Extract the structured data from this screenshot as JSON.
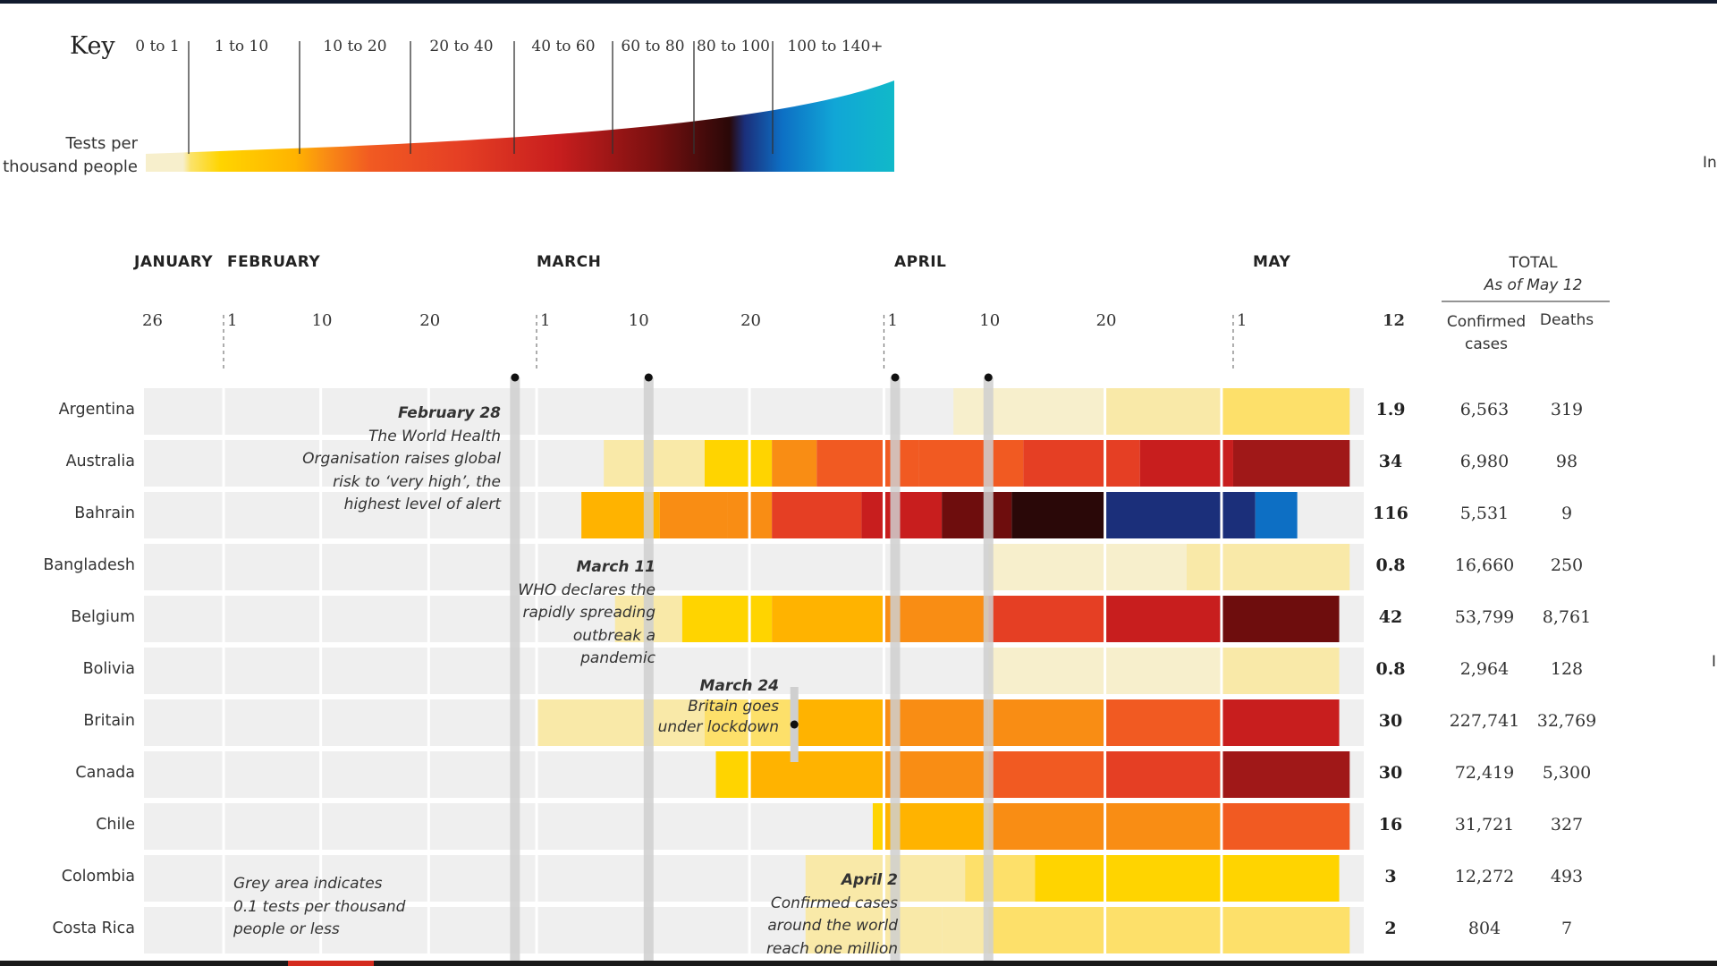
{
  "key": {
    "title": "Key",
    "label_line1": "Tests per",
    "label_line2": "thousand people",
    "ranges": [
      "0 to 1",
      "1 to 10",
      "10 to 20",
      "20 to 40",
      "40 to 60",
      "60 to 80",
      "80 to 100",
      "100 to 140+"
    ]
  },
  "months": [
    "JANUARY",
    "FEBRUARY",
    "MARCH",
    "APRIL",
    "MAY"
  ],
  "days": {
    "jan": [
      "26"
    ],
    "feb": [
      "1",
      "10",
      "20"
    ],
    "mar": [
      "1",
      "10",
      "20"
    ],
    "apr": [
      "1",
      "10",
      "20"
    ],
    "may": [
      "1"
    ],
    "last": "12"
  },
  "totals_header": {
    "title": "TOTAL",
    "subtitle": "As of May 12",
    "confirmed_line1": "Confirmed",
    "confirmed_line2": "cases",
    "deaths": "Deaths"
  },
  "annotations": {
    "feb28": {
      "date": "February 28",
      "lines": [
        "The World Health",
        "Organisation raises global",
        "risk to ‘very high’, the",
        "highest level of alert"
      ]
    },
    "mar11": {
      "date": "March 11",
      "lines": [
        "WHO declares the",
        "rapidly spreading",
        "outbreak a",
        "pandemic"
      ]
    },
    "mar24": {
      "date": "March 24",
      "lines": [
        "Britain goes",
        "under lockdown"
      ]
    },
    "apr2": {
      "date": "April 2",
      "lines": [
        "Confirmed cases",
        "around the world",
        "reach one million"
      ]
    },
    "grey": {
      "lines": [
        "Grey area indicates",
        "0.1 tests per thousand",
        "people or less"
      ]
    }
  },
  "edge_text": {
    "right_top": "In",
    "right_mid": "I"
  },
  "colors": {
    "grey_row": "#efefef",
    "event_line": "#cfcfcf",
    "scale": [
      "#f7efcc",
      "#fbe36a",
      "#ffd400",
      "#ffb300",
      "#f98d14",
      "#f15a22",
      "#e53f24",
      "#c81e1e",
      "#a01818",
      "#6e0d0d",
      "#2a0808",
      "#1b2f7a",
      "#0d6fc4",
      "#11a6d6",
      "#11b9c9"
    ]
  },
  "chart_data": {
    "type": "heatmap",
    "title": "",
    "xlabel": "",
    "ylabel": "",
    "x_range": [
      "2020-01-26",
      "2020-05-12"
    ],
    "legend": {
      "title": "Tests per thousand people",
      "bins": [
        "0 to 1",
        "1 to 10",
        "10 to 20",
        "20 to 40",
        "40 to 60",
        "60 to 80",
        "80 to 100",
        "100 to 140+"
      ],
      "position": "top-left"
    },
    "events": [
      {
        "date": "2020-02-28",
        "label": "February 28"
      },
      {
        "date": "2020-03-11",
        "label": "March 11"
      },
      {
        "date": "2020-04-02",
        "label": "April 2"
      },
      {
        "date": "2020-04-10",
        "label": ""
      }
    ],
    "columns": [
      "Tests per thousand (May 12)",
      "Confirmed cases",
      "Deaths"
    ],
    "rows": [
      {
        "country": "Argentina",
        "start": "2020-04-07",
        "end": "2020-05-12",
        "tests": "1.9",
        "cases": "6,563",
        "deaths": "319",
        "segments": [
          [
            "2020-04-07",
            "2020-04-20",
            0.15
          ],
          [
            "2020-04-20",
            "2020-04-30",
            0.6
          ],
          [
            "2020-04-30",
            "2020-05-12",
            1.9
          ]
        ]
      },
      {
        "country": "Australia",
        "start": "2020-03-07",
        "end": "2020-05-12",
        "tests": "34",
        "cases": "6,980",
        "deaths": "98",
        "segments": [
          [
            "2020-03-07",
            "2020-03-16",
            0.8
          ],
          [
            "2020-03-16",
            "2020-03-22",
            4
          ],
          [
            "2020-03-22",
            "2020-03-26",
            10
          ],
          [
            "2020-03-26",
            "2020-04-04",
            13
          ],
          [
            "2020-04-04",
            "2020-04-13",
            16
          ],
          [
            "2020-04-13",
            "2020-04-23",
            21
          ],
          [
            "2020-04-23",
            "2020-05-01",
            25
          ],
          [
            "2020-05-01",
            "2020-05-12",
            34
          ]
        ]
      },
      {
        "country": "Bahrain",
        "start": "2020-03-05",
        "end": "2020-05-07",
        "tests": "116",
        "cases": "5,531",
        "deaths": "9",
        "segments": [
          [
            "2020-03-05",
            "2020-03-12",
            6
          ],
          [
            "2020-03-12",
            "2020-03-18",
            9
          ],
          [
            "2020-03-18",
            "2020-03-22",
            11
          ],
          [
            "2020-03-22",
            "2020-03-30",
            18
          ],
          [
            "2020-03-30",
            "2020-04-06",
            27
          ],
          [
            "2020-04-06",
            "2020-04-12",
            40
          ],
          [
            "2020-04-12",
            "2020-04-20",
            52
          ],
          [
            "2020-04-20",
            "2020-04-30",
            68
          ],
          [
            "2020-04-30",
            "2020-05-03",
            86
          ],
          [
            "2020-05-03",
            "2020-05-07",
            108
          ]
        ]
      },
      {
        "country": "Bangladesh",
        "start": "2020-04-10",
        "end": "2020-05-12",
        "tests": "0.8",
        "cases": "16,660",
        "deaths": "250",
        "segments": [
          [
            "2020-04-10",
            "2020-04-27",
            0.2
          ],
          [
            "2020-04-27",
            "2020-05-12",
            0.8
          ]
        ]
      },
      {
        "country": "Belgium",
        "start": "2020-03-08",
        "end": "2020-05-11",
        "tests": "42",
        "cases": "53,799",
        "deaths": "8,761",
        "segments": [
          [
            "2020-03-08",
            "2020-03-14",
            0.8
          ],
          [
            "2020-03-14",
            "2020-03-22",
            3
          ],
          [
            "2020-03-22",
            "2020-04-01",
            8
          ],
          [
            "2020-04-01",
            "2020-04-10",
            12
          ],
          [
            "2020-04-10",
            "2020-04-20",
            18
          ],
          [
            "2020-04-20",
            "2020-04-30",
            24
          ],
          [
            "2020-04-30",
            "2020-05-11",
            40
          ]
        ]
      },
      {
        "country": "Bolivia",
        "start": "2020-04-10",
        "end": "2020-05-11",
        "tests": "0.8",
        "cases": "2,964",
        "deaths": "128",
        "segments": [
          [
            "2020-04-10",
            "2020-04-30",
            0.2
          ],
          [
            "2020-04-30",
            "2020-05-11",
            0.8
          ]
        ]
      },
      {
        "country": "Britain",
        "start": "2020-03-01",
        "end": "2020-05-11",
        "tests": "30",
        "cases": "227,741",
        "deaths": "32,769",
        "segments": [
          [
            "2020-03-01",
            "2020-03-16",
            0.5
          ],
          [
            "2020-03-16",
            "2020-03-24",
            2
          ],
          [
            "2020-03-24",
            "2020-04-01",
            6
          ],
          [
            "2020-04-01",
            "2020-04-10",
            9
          ],
          [
            "2020-04-10",
            "2020-04-20",
            11
          ],
          [
            "2020-04-20",
            "2020-04-30",
            14
          ],
          [
            "2020-04-30",
            "2020-05-11",
            24
          ]
        ]
      },
      {
        "country": "Canada",
        "start": "2020-03-17",
        "end": "2020-05-12",
        "tests": "30",
        "cases": "72,419",
        "deaths": "5,300",
        "segments": [
          [
            "2020-03-17",
            "2020-03-20",
            4
          ],
          [
            "2020-03-20",
            "2020-04-01",
            8
          ],
          [
            "2020-04-01",
            "2020-04-10",
            12
          ],
          [
            "2020-04-10",
            "2020-04-20",
            15
          ],
          [
            "2020-04-20",
            "2020-04-30",
            20
          ],
          [
            "2020-04-30",
            "2020-05-12",
            30
          ]
        ]
      },
      {
        "country": "Chile",
        "start": "2020-03-31",
        "end": "2020-05-12",
        "tests": "16",
        "cases": "31,721",
        "deaths": "327",
        "segments": [
          [
            "2020-03-31",
            "2020-04-01",
            3
          ],
          [
            "2020-04-01",
            "2020-04-10",
            7
          ],
          [
            "2020-04-10",
            "2020-04-20",
            9
          ],
          [
            "2020-04-20",
            "2020-04-30",
            11
          ],
          [
            "2020-04-30",
            "2020-05-12",
            15
          ]
        ]
      },
      {
        "country": "Colombia",
        "start": "2020-03-25",
        "end": "2020-05-11",
        "tests": "3",
        "cases": "12,272",
        "deaths": "493",
        "segments": [
          [
            "2020-03-25",
            "2020-04-08",
            0.4
          ],
          [
            "2020-04-08",
            "2020-04-14",
            1.2
          ],
          [
            "2020-04-14",
            "2020-05-11",
            3
          ]
        ]
      },
      {
        "country": "Costa Rica",
        "start": "2020-03-25",
        "end": "2020-05-12",
        "tests": "2",
        "cases": "804",
        "deaths": "7",
        "segments": [
          [
            "2020-03-25",
            "2020-04-06",
            0.3
          ],
          [
            "2020-04-06",
            "2020-04-10",
            0.9
          ],
          [
            "2020-04-10",
            "2020-05-12",
            2
          ]
        ]
      }
    ]
  }
}
